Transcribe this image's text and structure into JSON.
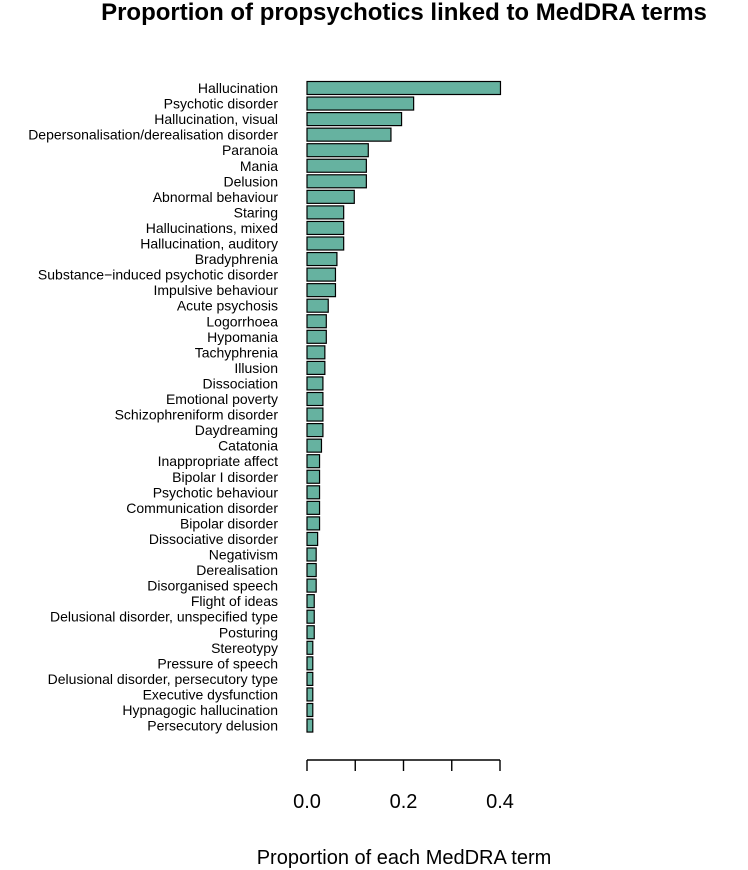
{
  "chart_data": {
    "type": "bar",
    "orientation": "horizontal",
    "title": "Proportion of propsychotics linked to MedDRA terms",
    "xlabel": "Proportion of each MedDRA term",
    "ylabel": "",
    "xlim": [
      0,
      0.4
    ],
    "xticks": [
      0.0,
      0.1,
      0.2,
      0.3,
      0.4
    ],
    "xtick_labels": [
      {
        "value": 0.0,
        "label": "0.0"
      },
      {
        "value": 0.2,
        "label": "0.2"
      },
      {
        "value": 0.4,
        "label": "0.4"
      }
    ],
    "bar_color": "#66b2a0",
    "categories": [
      "Hallucination",
      "Psychotic disorder",
      "Hallucination, visual",
      "Depersonalisation/derealisation disorder",
      "Paranoia",
      "Mania",
      "Delusion",
      "Abnormal behaviour",
      "Staring",
      "Hallucinations, mixed",
      "Hallucination, auditory",
      "Bradyphrenia",
      "Substance−induced psychotic disorder",
      "Impulsive behaviour",
      "Acute psychosis",
      "Logorrhoea",
      "Hypomania",
      "Tachyphrenia",
      "Illusion",
      "Dissociation",
      "Emotional poverty",
      "Schizophreniform disorder",
      "Daydreaming",
      "Catatonia",
      "Inappropriate affect",
      "Bipolar I disorder",
      "Psychotic behaviour",
      "Communication disorder",
      "Bipolar disorder",
      "Dissociative disorder",
      "Negativism",
      "Derealisation",
      "Disorganised speech",
      "Flight of ideas",
      "Delusional disorder, unspecified type",
      "Posturing",
      "Stereotypy",
      "Pressure of speech",
      "Delusional disorder, persecutory type",
      "Executive dysfunction",
      "Hypnagogic hallucination",
      "Persecutory delusion"
    ],
    "values": [
      0.401,
      0.221,
      0.196,
      0.174,
      0.127,
      0.123,
      0.123,
      0.098,
      0.076,
      0.076,
      0.076,
      0.062,
      0.059,
      0.059,
      0.044,
      0.04,
      0.04,
      0.037,
      0.037,
      0.033,
      0.033,
      0.033,
      0.033,
      0.03,
      0.026,
      0.026,
      0.026,
      0.026,
      0.026,
      0.022,
      0.019,
      0.019,
      0.019,
      0.015,
      0.015,
      0.015,
      0.012,
      0.012,
      0.012,
      0.012,
      0.012,
      0.012
    ]
  }
}
